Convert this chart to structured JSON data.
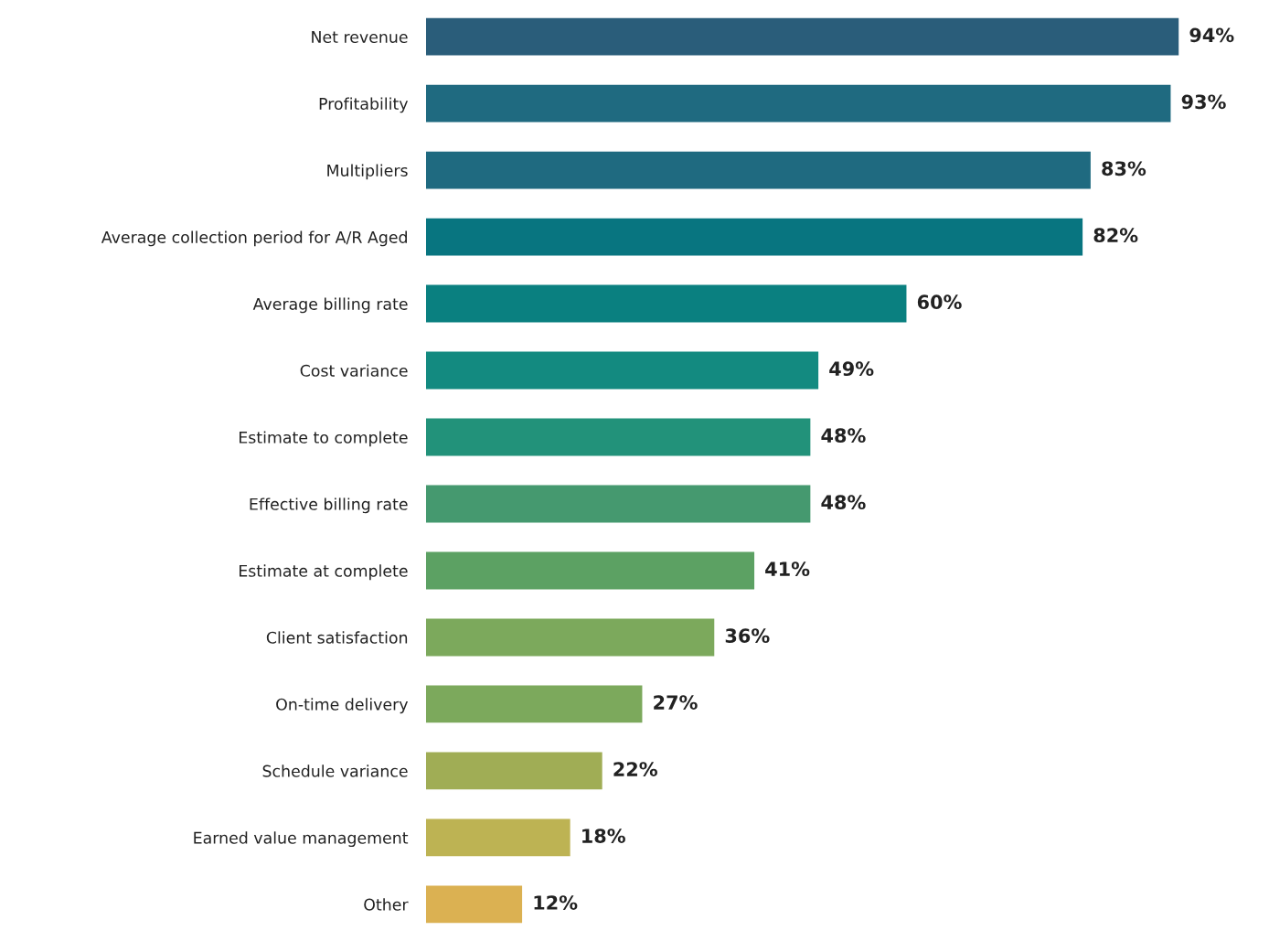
{
  "chart_data": {
    "type": "bar",
    "orientation": "horizontal",
    "data_labels": true,
    "grid": false,
    "legend": false,
    "categories": [
      "Net revenue",
      "Profitability",
      "Multipliers",
      "Average collection period for A/R Aged",
      "Average billing rate",
      "Cost variance",
      "Estimate to complete",
      "Effective billing rate",
      "Estimate at complete",
      "Client satisfaction",
      "On-time delivery",
      "Schedule variance",
      "Earned value management",
      "Other"
    ],
    "values": [
      94,
      93,
      83,
      82,
      60,
      49,
      48,
      48,
      41,
      36,
      27,
      22,
      18,
      12
    ],
    "value_labels": [
      "94%",
      "93%",
      "83%",
      "82%",
      "60%",
      "49%",
      "48%",
      "48%",
      "41%",
      "36%",
      "27%",
      "22%",
      "18%",
      "12%"
    ],
    "colors": [
      "#2a5d7a",
      "#1f6a80",
      "#1f6a80",
      "#087580",
      "#0a8080",
      "#138a80",
      "#22927a",
      "#45996f",
      "#5ca163",
      "#7ca95c",
      "#7ca95c",
      "#a0ad55",
      "#bdb353",
      "#dbb152"
    ]
  }
}
